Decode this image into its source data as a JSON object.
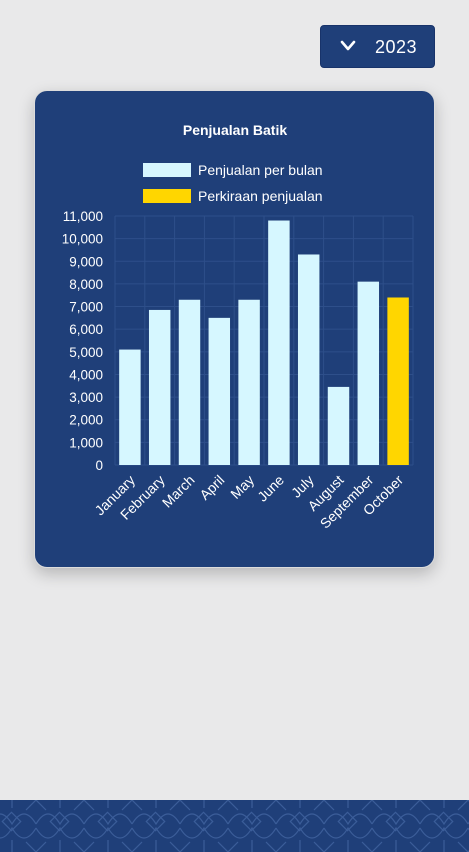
{
  "year_selector": {
    "value": "2023",
    "icon": "chevron-down-icon"
  },
  "colors": {
    "background": "#e9e9ea",
    "card": "#1f3f79",
    "monthly_bar": "#d6f7ff",
    "forecast_bar": "#ffd600",
    "text": "#ffffff"
  },
  "chart_data": {
    "type": "bar",
    "title": "Penjualan Batik",
    "xlabel": "",
    "ylabel": "",
    "ylim": [
      0,
      11000
    ],
    "yticks": [
      "0",
      "1,000",
      "2,000",
      "3,000",
      "4,000",
      "5,000",
      "6,000",
      "7,000",
      "8,000",
      "9,000",
      "10,000",
      "11,000"
    ],
    "categories": [
      "January",
      "February",
      "March",
      "April",
      "May",
      "June",
      "July",
      "August",
      "September",
      "October"
    ],
    "series": [
      {
        "name": "Penjualan per bulan",
        "color": "#d6f7ff",
        "values": [
          5100,
          6850,
          7300,
          6500,
          7300,
          10800,
          9300,
          3450,
          8100,
          null
        ]
      },
      {
        "name": "Perkiraan penjualan",
        "color": "#ffd600",
        "values": [
          null,
          null,
          null,
          null,
          null,
          null,
          null,
          null,
          null,
          7400
        ]
      }
    ],
    "legend": "top",
    "grid": true
  }
}
